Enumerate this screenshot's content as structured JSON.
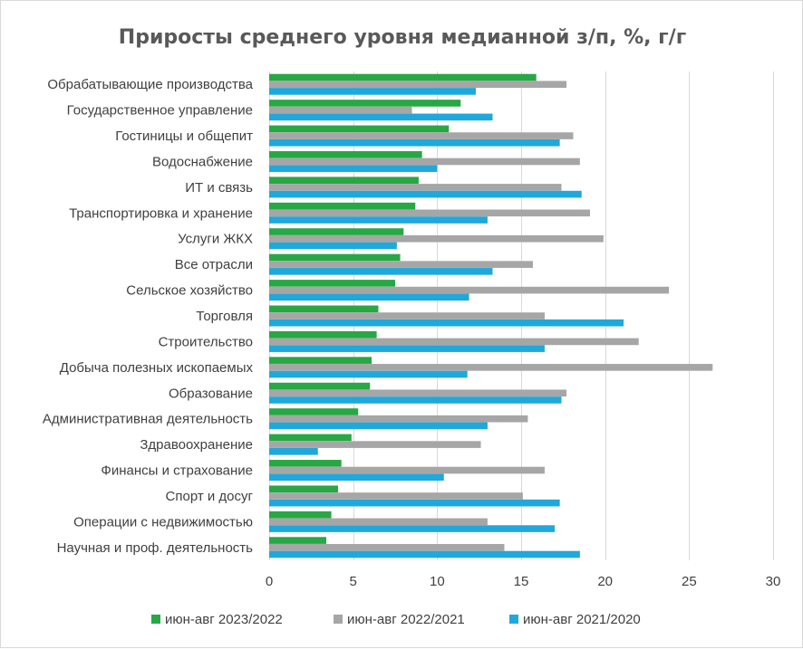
{
  "chart_data": {
    "type": "bar",
    "orientation": "horizontal",
    "title": "Приросты среднего уровня медианной з/п, %, г/г",
    "categories": [
      "Обрабатывающие производства",
      "Государственное управление",
      "Гостиницы и общепит",
      "Водоснабжение",
      "ИТ и связь",
      "Транспортировка и хранение",
      "Услуги ЖКХ",
      "Все отрасли",
      "Сельское хозяйство",
      "Торговля",
      "Строительство",
      "Добыча полезных ископаемых",
      "Образование",
      "Административная деятельность",
      "Здравоохранение",
      "Финансы и страхование",
      "Спорт и досуг",
      "Операции с недвижимостью",
      "Научная и проф. деятельность"
    ],
    "series": [
      {
        "name": "июн-авг 2023/2022",
        "color": "#27a844",
        "values": [
          15.9,
          11.4,
          10.7,
          9.1,
          8.9,
          8.7,
          8.0,
          7.8,
          7.5,
          6.5,
          6.4,
          6.1,
          6.0,
          5.3,
          4.9,
          4.3,
          4.1,
          3.7,
          3.4
        ]
      },
      {
        "name": "июн-авг 2022/2021",
        "color": "#a6a6a6",
        "values": [
          17.7,
          8.5,
          18.1,
          18.5,
          17.4,
          19.1,
          19.9,
          15.7,
          23.8,
          16.4,
          22.0,
          26.4,
          17.7,
          15.4,
          12.6,
          16.4,
          15.1,
          13.0,
          14.0
        ]
      },
      {
        "name": "июн-авг 2021/2020",
        "color": "#1fa8db",
        "values": [
          12.3,
          13.3,
          17.3,
          10.0,
          18.6,
          13.0,
          7.6,
          13.3,
          11.9,
          21.1,
          16.4,
          11.8,
          17.4,
          13.0,
          2.9,
          10.4,
          17.3,
          17.0,
          18.5
        ]
      }
    ],
    "xlim": [
      0,
      30
    ],
    "xticks": [
      0,
      5,
      10,
      15,
      20,
      25,
      30
    ],
    "grid": true,
    "legend_position": "bottom"
  }
}
